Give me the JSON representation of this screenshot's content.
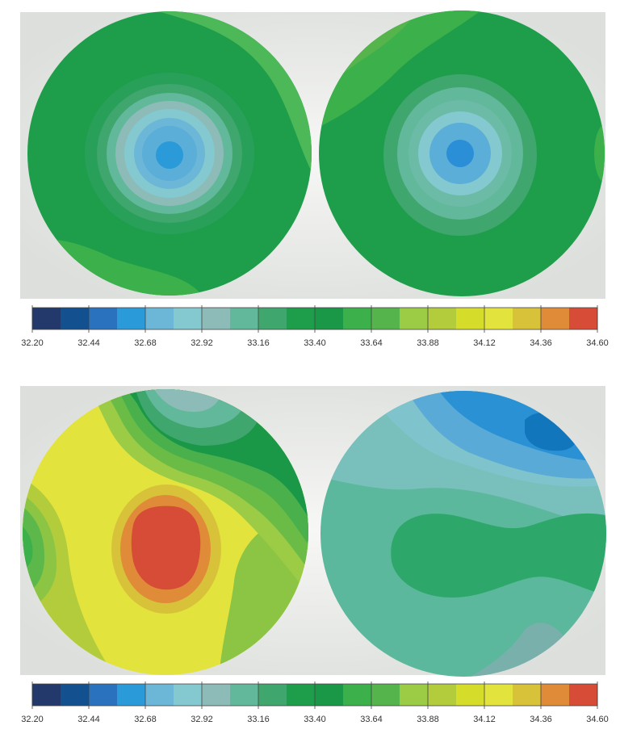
{
  "chart_data": {
    "type": "heatmap",
    "description_units": "colorbar scale",
    "panels": [
      {
        "name": "top",
        "maps": 2
      },
      {
        "name": "bottom",
        "maps": 2
      }
    ],
    "colorbar": {
      "min": 32.2,
      "max": 34.6,
      "step": 0.12,
      "tick_labels": [
        "32.20",
        "32.44",
        "32.68",
        "32.92",
        "33.16",
        "33.40",
        "33.64",
        "33.88",
        "34.12",
        "34.36",
        "34.60"
      ],
      "colors": [
        "#23386b",
        "#12508f",
        "#2a72bd",
        "#2a9ad8",
        "#6cb6d8",
        "#84c9d0",
        "#8dbcb8",
        "#62b89a",
        "#3fa66e",
        "#1e9e4a",
        "#1a9848",
        "#3cb04a",
        "#55b44c",
        "#9ccb45",
        "#b2cc3c",
        "#d6dc2a",
        "#e3e33e",
        "#d8c23a",
        "#e08b38",
        "#d64c36"
      ]
    }
  }
}
